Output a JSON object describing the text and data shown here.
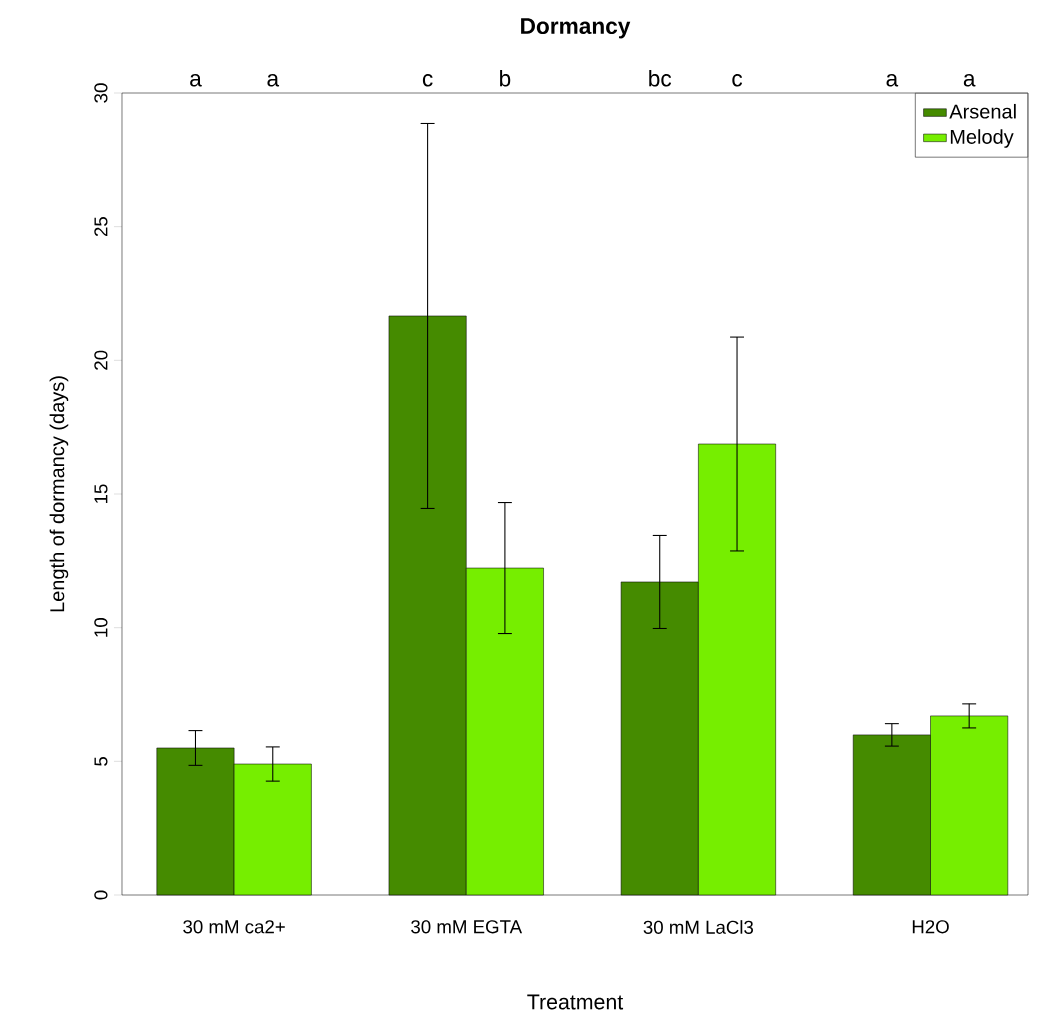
{
  "chart_data": {
    "type": "bar",
    "title": "Dormancy",
    "xlabel": "Treatment",
    "ylabel": "Length of dormancy (days)",
    "categories": [
      "30 mM ca2+",
      "30 mM EGTA",
      "30 mM LaCl3",
      "H2O"
    ],
    "series": [
      {
        "name": "Arsenal",
        "color": "#458b00",
        "values": [
          5.5,
          21.66,
          11.71,
          5.99
        ],
        "errors": [
          0.65,
          7.2,
          1.74,
          0.42
        ]
      },
      {
        "name": "Melody",
        "color": "#76ee00",
        "values": [
          4.9,
          12.23,
          16.87,
          6.7
        ],
        "errors": [
          0.64,
          2.45,
          4.0,
          0.45
        ]
      }
    ],
    "ylim": [
      0,
      30
    ],
    "yticks": [
      0,
      5,
      10,
      15,
      20,
      25,
      30
    ],
    "grid": false,
    "legend": "top right",
    "annotations": [
      "a",
      "a",
      "c",
      "b",
      "bc",
      "c",
      "a",
      "a"
    ]
  }
}
